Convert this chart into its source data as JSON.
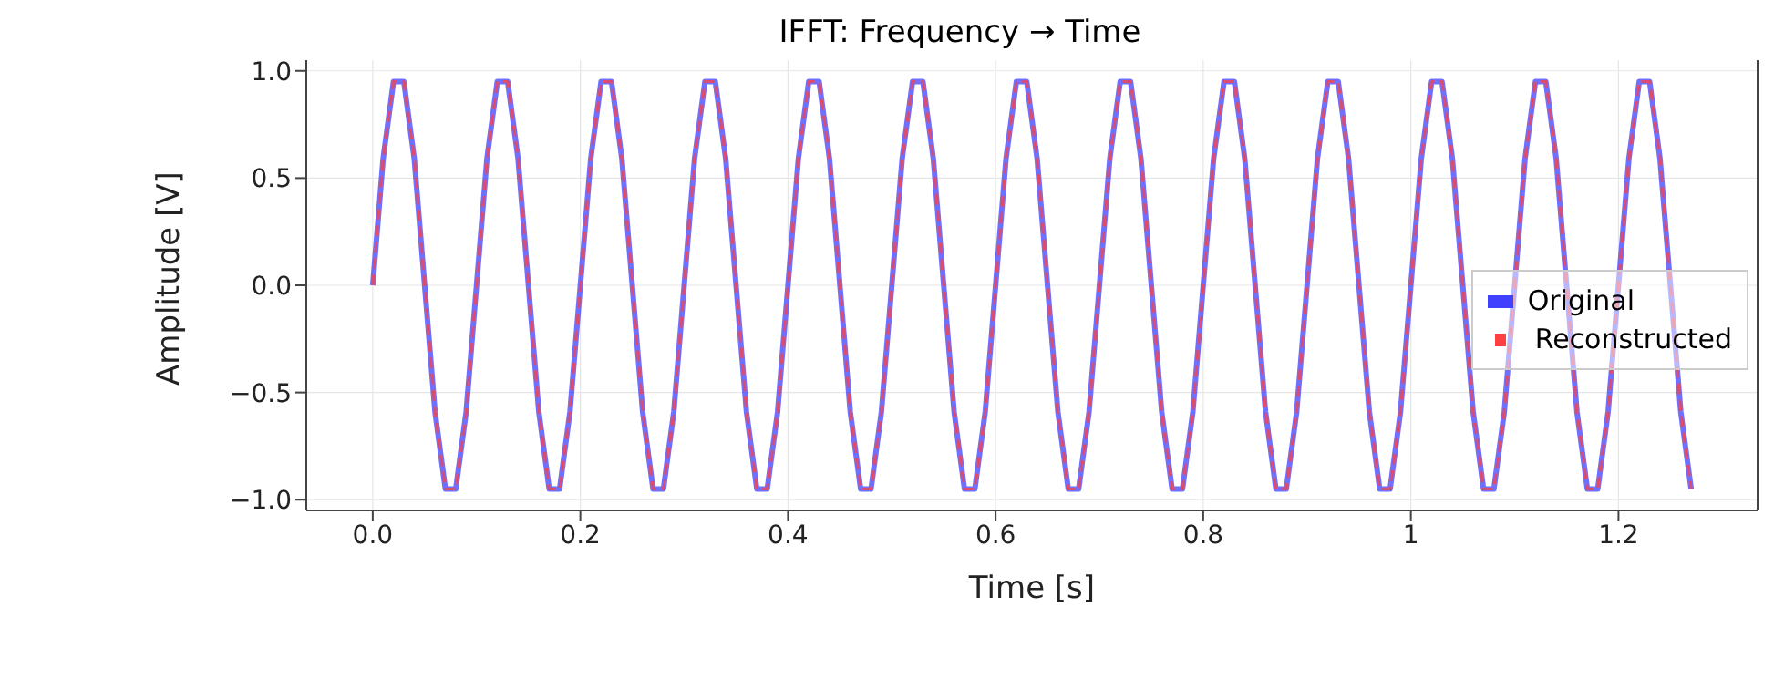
{
  "chart_data": {
    "type": "line",
    "title": "IFFT: Frequency → Time",
    "xlabel": "Time [s]",
    "ylabel": "Amplitude [V]",
    "x": [
      0,
      0.01,
      0.02,
      0.03,
      0.04,
      0.05,
      0.06,
      0.07,
      0.08,
      0.09,
      0.1,
      0.11,
      0.12,
      0.13,
      0.14,
      0.15,
      0.16,
      0.17,
      0.18,
      0.19,
      0.2,
      0.21,
      0.22,
      0.23,
      0.24,
      0.25,
      0.26,
      0.27,
      0.28,
      0.29,
      0.3,
      0.31,
      0.32,
      0.33,
      0.34,
      0.35,
      0.36,
      0.37,
      0.38,
      0.39,
      0.4,
      0.41,
      0.42,
      0.43,
      0.44,
      0.45,
      0.46,
      0.47,
      0.48,
      0.49,
      0.5,
      0.51,
      0.52,
      0.53,
      0.54,
      0.55,
      0.56,
      0.57,
      0.58,
      0.59,
      0.6,
      0.61,
      0.62,
      0.63,
      0.64,
      0.65,
      0.66,
      0.67,
      0.68,
      0.69,
      0.7,
      0.71,
      0.72,
      0.73,
      0.74,
      0.75,
      0.76,
      0.77,
      0.78,
      0.79,
      0.8,
      0.81,
      0.82,
      0.83,
      0.84,
      0.85,
      0.86,
      0.87,
      0.88,
      0.89,
      0.9,
      0.91,
      0.92,
      0.93,
      0.94,
      0.95,
      0.96,
      0.97,
      0.98,
      0.99,
      1,
      1.01,
      1.02,
      1.03,
      1.04,
      1.05,
      1.06,
      1.07,
      1.08,
      1.09,
      1.1,
      1.11,
      1.12,
      1.13,
      1.14,
      1.15,
      1.16,
      1.17,
      1.18,
      1.19,
      1.2,
      1.21,
      1.22,
      1.23,
      1.24,
      1.25,
      1.26,
      1.27
    ],
    "series": [
      {
        "name": "Original",
        "color": "#4040ff",
        "line_style": "solid",
        "values": [
          0,
          0.59,
          0.95,
          0.95,
          0.59,
          0,
          -0.59,
          -0.95,
          -0.95,
          -0.59,
          0,
          0.59,
          0.95,
          0.95,
          0.59,
          0,
          -0.59,
          -0.95,
          -0.95,
          -0.59,
          0,
          0.59,
          0.95,
          0.95,
          0.59,
          0,
          -0.59,
          -0.95,
          -0.95,
          -0.59,
          0,
          0.59,
          0.95,
          0.95,
          0.59,
          0,
          -0.59,
          -0.95,
          -0.95,
          -0.59,
          0,
          0.59,
          0.95,
          0.95,
          0.59,
          0,
          -0.59,
          -0.95,
          -0.95,
          -0.59,
          0,
          0.59,
          0.95,
          0.95,
          0.59,
          0,
          -0.59,
          -0.95,
          -0.95,
          -0.59,
          0,
          0.59,
          0.95,
          0.95,
          0.59,
          0,
          -0.59,
          -0.95,
          -0.95,
          -0.59,
          0,
          0.59,
          0.95,
          0.95,
          0.59,
          0,
          -0.59,
          -0.95,
          -0.95,
          -0.59,
          0,
          0.59,
          0.95,
          0.95,
          0.59,
          0,
          -0.59,
          -0.95,
          -0.95,
          -0.59,
          0,
          0.59,
          0.95,
          0.95,
          0.59,
          0,
          -0.59,
          -0.95,
          -0.95,
          -0.59,
          0,
          0.59,
          0.95,
          0.95,
          0.59,
          0,
          -0.59,
          -0.95,
          -0.95,
          -0.59,
          0,
          0.59,
          0.95,
          0.95,
          0.59,
          0,
          -0.59,
          -0.95,
          -0.95,
          -0.59,
          0,
          0.59,
          0.95,
          0.95,
          0.59,
          0,
          -0.59,
          -0.95
        ]
      },
      {
        "name": "Reconstructed",
        "color": "#ff4040",
        "line_style": "dashed",
        "values": [
          0,
          0.59,
          0.95,
          0.95,
          0.59,
          0,
          -0.59,
          -0.95,
          -0.95,
          -0.59,
          0,
          0.59,
          0.95,
          0.95,
          0.59,
          0,
          -0.59,
          -0.95,
          -0.95,
          -0.59,
          0,
          0.59,
          0.95,
          0.95,
          0.59,
          0,
          -0.59,
          -0.95,
          -0.95,
          -0.59,
          0,
          0.59,
          0.95,
          0.95,
          0.59,
          0,
          -0.59,
          -0.95,
          -0.95,
          -0.59,
          0,
          0.59,
          0.95,
          0.95,
          0.59,
          0,
          -0.59,
          -0.95,
          -0.95,
          -0.59,
          0,
          0.59,
          0.95,
          0.95,
          0.59,
          0,
          -0.59,
          -0.95,
          -0.95,
          -0.59,
          0,
          0.59,
          0.95,
          0.95,
          0.59,
          0,
          -0.59,
          -0.95,
          -0.95,
          -0.59,
          0,
          0.59,
          0.95,
          0.95,
          0.59,
          0,
          -0.59,
          -0.95,
          -0.95,
          -0.59,
          0,
          0.59,
          0.95,
          0.95,
          0.59,
          0,
          -0.59,
          -0.95,
          -0.95,
          -0.59,
          0,
          0.59,
          0.95,
          0.95,
          0.59,
          0,
          -0.59,
          -0.95,
          -0.95,
          -0.59,
          0,
          0.59,
          0.95,
          0.95,
          0.59,
          0,
          -0.59,
          -0.95,
          -0.95,
          -0.59,
          0,
          0.59,
          0.95,
          0.95,
          0.59,
          0,
          -0.59,
          -0.95,
          -0.95,
          -0.59,
          0,
          0.59,
          0.95,
          0.95,
          0.59,
          0,
          -0.59,
          -0.95
        ]
      }
    ],
    "xlim": [
      -0.064,
      1.334
    ],
    "xticks": [
      {
        "value": 0,
        "label": "0.0"
      },
      0.2,
      0.4,
      0.6,
      0.8,
      1,
      {
        "value": 1.2,
        "label": "1.2"
      }
    ],
    "ylim": [
      -1.05,
      1.05
    ],
    "yticks": [
      {
        "value": -1,
        "label": "−1.0"
      },
      {
        "value": -0.5,
        "label": "−0.5"
      },
      {
        "value": 0,
        "label": "0.0"
      },
      0.5,
      {
        "value": 1,
        "label": "1.0"
      }
    ],
    "grid": true,
    "legend": "center right"
  }
}
